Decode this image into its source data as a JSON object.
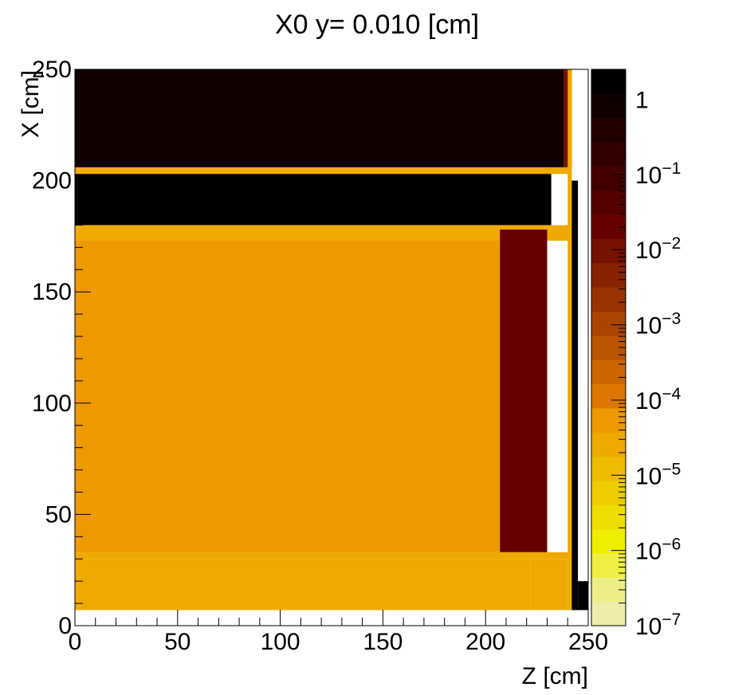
{
  "chart_data": {
    "type": "heatmap",
    "title": "X0 y=  0.010 [cm]",
    "xlabel": "Z [cm]",
    "ylabel": "X [cm]",
    "xlim": [
      0,
      250
    ],
    "ylim": [
      0,
      250
    ],
    "x_ticks": [
      0,
      50,
      100,
      150,
      200,
      250
    ],
    "y_ticks": [
      0,
      50,
      100,
      150,
      200,
      250
    ],
    "colorbar": {
      "scale": "log",
      "range": [
        1e-07,
        2.5
      ],
      "tick_labels": [
        {
          "base": "1",
          "exp": "",
          "value": 1
        },
        {
          "base": "10",
          "exp": "−1",
          "value": 0.1
        },
        {
          "base": "10",
          "exp": "−2",
          "value": 0.01
        },
        {
          "base": "10",
          "exp": "−3",
          "value": 0.001
        },
        {
          "base": "10",
          "exp": "−4",
          "value": 0.0001
        },
        {
          "base": "10",
          "exp": "−5",
          "value": 1e-05
        },
        {
          "base": "10",
          "exp": "−6",
          "value": 1e-06
        },
        {
          "base": "10",
          "exp": "−7",
          "value": 1e-07
        }
      ],
      "colors": [
        "#eeeeaa",
        "#eeee88",
        "#eeee44",
        "#eeee00",
        "#eedd00",
        "#eecc00",
        "#eebb00",
        "#eeaa00",
        "#ee9900",
        "#dd7700",
        "#cc6600",
        "#bb5500",
        "#aa4400",
        "#993300",
        "#882200",
        "#771100",
        "#660000",
        "#550000",
        "#440000",
        "#330000",
        "#220000",
        "#110000",
        "#000000"
      ]
    },
    "regions": [
      {
        "z": [
          0,
          242
        ],
        "x": [
          205,
          250
        ],
        "value": 1.0
      },
      {
        "z": [
          238,
          242
        ],
        "x": [
          205,
          250
        ],
        "value": 0.01
      },
      {
        "z": [
          0,
          242
        ],
        "x": [
          203,
          206
        ],
        "value": 2e-05
      },
      {
        "z": [
          0,
          232
        ],
        "x": [
          180,
          203
        ],
        "value": 2.0
      },
      {
        "z": [
          0,
          242
        ],
        "x": [
          178,
          180
        ],
        "value": 2e-05
      },
      {
        "z": [
          0,
          242
        ],
        "x": [
          173,
          178
        ],
        "value": 3e-05
      },
      {
        "z": [
          0,
          207
        ],
        "x": [
          33,
          173
        ],
        "value": 5e-05
      },
      {
        "z": [
          207,
          230
        ],
        "x": [
          33,
          178
        ],
        "value": 0.02
      },
      {
        "z": [
          0,
          242
        ],
        "x": [
          30,
          33
        ],
        "value": 3e-05
      },
      {
        "z": [
          0,
          222
        ],
        "x": [
          7,
          30
        ],
        "value": 3e-05
      },
      {
        "z": [
          222,
          240
        ],
        "x": [
          7,
          30
        ],
        "value": 2e-05
      },
      {
        "z": [
          240,
          242
        ],
        "x": [
          7,
          250
        ],
        "value": 3e-05
      },
      {
        "z": [
          242,
          245
        ],
        "x": [
          7,
          200
        ],
        "value": 2.0
      },
      {
        "z": [
          245,
          250
        ],
        "x": [
          7,
          20
        ],
        "value": 2.0
      }
    ]
  }
}
